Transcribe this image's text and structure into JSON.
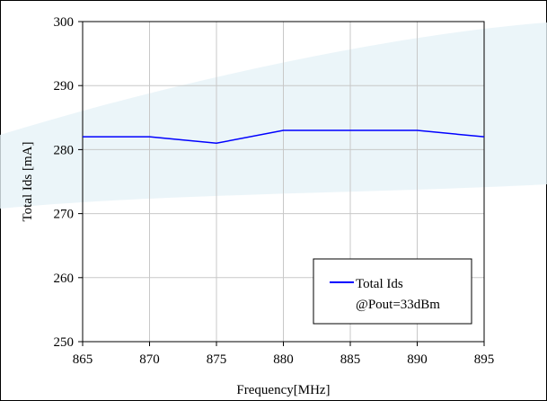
{
  "chart_data": {
    "type": "line",
    "title": "",
    "xlabel": "Frequency[MHz]",
    "ylabel": "Total Ids [mA]",
    "xlim": [
      865,
      895
    ],
    "ylim": [
      250,
      300
    ],
    "x_ticks": [
      865,
      870,
      875,
      880,
      885,
      890,
      895
    ],
    "y_ticks": [
      250,
      260,
      270,
      280,
      290,
      300
    ],
    "x_tick_labels": [
      "865",
      "870",
      "875",
      "880",
      "885",
      "890",
      "895"
    ],
    "y_tick_labels": [
      "250",
      "260",
      "270",
      "280",
      "290",
      "300"
    ],
    "grid": true,
    "legend_position": "bottom-right",
    "series": [
      {
        "name": "Total Ids",
        "color": "#0000ff",
        "x": [
          865,
          870,
          875,
          880,
          885,
          890,
          895
        ],
        "values": [
          282,
          282,
          281,
          283,
          283,
          283,
          282
        ]
      }
    ],
    "legend": {
      "entries": [
        "Total Ids"
      ],
      "note": "@Pout=33dBm"
    },
    "colors": {
      "grid": "#c8c8c8",
      "frame": "#000000",
      "watermark": "#e6f3f8"
    }
  }
}
